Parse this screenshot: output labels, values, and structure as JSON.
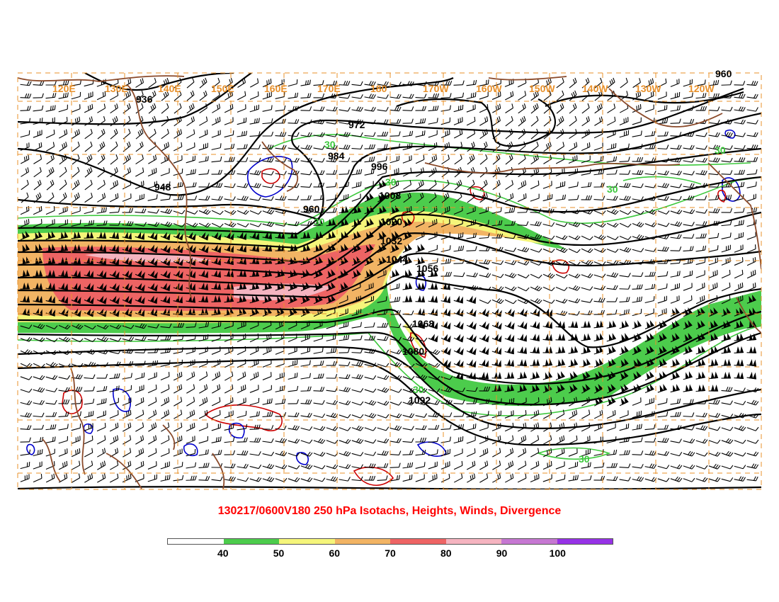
{
  "title": "130217/0600V180 250 hPa Isotachs, Heights, Winds, Divergence",
  "longitude_labels": [
    "120E",
    "130E",
    "140E",
    "150E",
    "160E",
    "170E",
    "180",
    "170W",
    "160W",
    "150W",
    "140W",
    "130W",
    "120W"
  ],
  "height_contour_labels": [
    "936",
    "948",
    "960",
    "972",
    "984",
    "996",
    "1008",
    "1020",
    "1032",
    "1044",
    "1056",
    "1068",
    "1080",
    "1092",
    "960"
  ],
  "isotach_labels": [
    "30",
    "30",
    "30",
    "30",
    "30",
    "30",
    "30"
  ],
  "colorbar": {
    "colors": [
      "#ffffff",
      "#4ccc4c",
      "#f5f57a",
      "#f2b464",
      "#ee6464",
      "#f5b4c0",
      "#c678d2",
      "#9632e6"
    ],
    "labels": [
      "40",
      "50",
      "60",
      "70",
      "80",
      "90",
      "100"
    ]
  },
  "colors": {
    "height_contour": "#000000",
    "coastline": "#8b4a2a",
    "gridline": "#e8902a",
    "isotach_30": "#3cc83c",
    "divergence_positive": "#0000cc",
    "divergence_negative": "#cc0000",
    "title": "#ff0000"
  },
  "map": {
    "region": "North Pacific",
    "level": "250 hPa",
    "fields": [
      "isotachs",
      "heights",
      "winds",
      "divergence"
    ]
  }
}
